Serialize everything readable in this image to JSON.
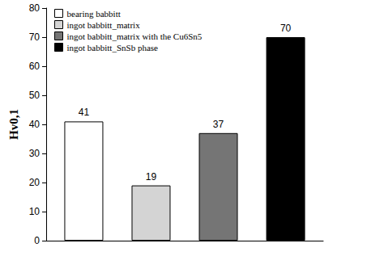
{
  "chart_data": {
    "type": "bar",
    "y_label": "Hv0,1",
    "categories": [
      null
    ],
    "series": [
      {
        "name": "bearing babbitt",
        "color": "#ffffff",
        "values": [
          41
        ]
      },
      {
        "name": "ingot babbitt_matrix",
        "color": "#d4d4d4",
        "values": [
          19
        ]
      },
      {
        "name": "ingot babbitt_matrix with the Cu6Sn5",
        "color": "#757575",
        "values": [
          37
        ]
      },
      {
        "name": "ingot babbitt_SnSb phase",
        "color": "#000000",
        "values": [
          70
        ]
      }
    ],
    "ylim": [
      0,
      80
    ],
    "yticks": [
      0,
      10,
      20,
      30,
      40,
      50,
      60,
      70,
      80
    ],
    "grid": false,
    "legend": "upper left",
    "data_labels": true,
    "tick_labels": "y"
  }
}
